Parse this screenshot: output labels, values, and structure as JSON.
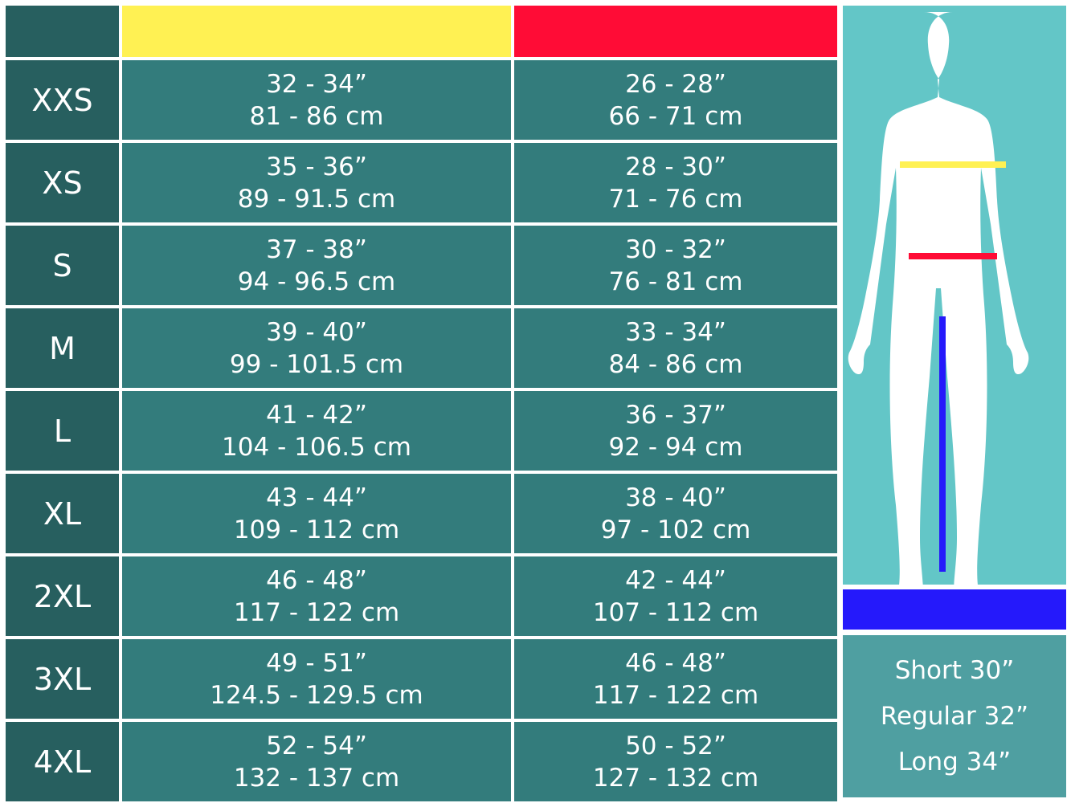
{
  "colors": {
    "chest": "#fff153",
    "waist": "#ff0c36",
    "inseam": "#2519fb",
    "panel": "#63c6c7",
    "cell": "#337c7c",
    "size_cell": "#275f5f"
  },
  "rows": [
    {
      "size": "XXS",
      "chest_in": "32 - 34”",
      "chest_cm": "81 - 86 cm",
      "waist_in": "26 - 28”",
      "waist_cm": "66 - 71 cm"
    },
    {
      "size": "XS",
      "chest_in": "35 - 36”",
      "chest_cm": "89 - 91.5 cm",
      "waist_in": "28 - 30”",
      "waist_cm": "71 - 76 cm"
    },
    {
      "size": "S",
      "chest_in": "37 - 38”",
      "chest_cm": "94 - 96.5 cm",
      "waist_in": "30 - 32”",
      "waist_cm": "76 - 81 cm"
    },
    {
      "size": "M",
      "chest_in": "39 - 40”",
      "chest_cm": "99 - 101.5 cm",
      "waist_in": "33 - 34”",
      "waist_cm": "84 - 86 cm"
    },
    {
      "size": "L",
      "chest_in": "41 - 42”",
      "chest_cm": "104 - 106.5 cm",
      "waist_in": "36 - 37”",
      "waist_cm": "92 - 94 cm"
    },
    {
      "size": "XL",
      "chest_in": "43 - 44”",
      "chest_cm": "109 - 112 cm",
      "waist_in": "38 - 40”",
      "waist_cm": "97 - 102 cm"
    },
    {
      "size": "2XL",
      "chest_in": "46 - 48”",
      "chest_cm": "117 - 122 cm",
      "waist_in": "42 - 44”",
      "waist_cm": "107 - 112 cm"
    },
    {
      "size": "3XL",
      "chest_in": "49 - 51”",
      "chest_cm": "124.5 - 129.5 cm",
      "waist_in": "46 - 48”",
      "waist_cm": "117 - 122 cm"
    },
    {
      "size": "4XL",
      "chest_in": "52 - 54”",
      "chest_cm": "132 - 137 cm",
      "waist_in": "50 - 52”",
      "waist_cm": "127 - 132 cm"
    }
  ],
  "leg_lengths": [
    "Short 30”",
    "Regular 32”",
    "Long 34”"
  ]
}
